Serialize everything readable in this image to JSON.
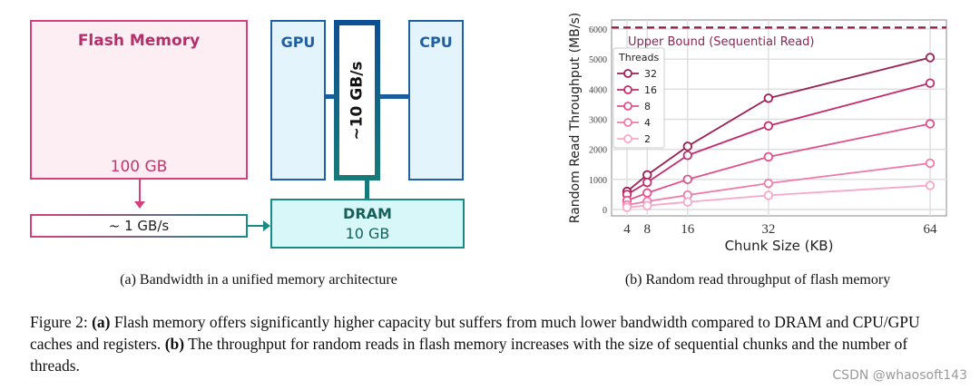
{
  "diagram": {
    "flash": {
      "title": "Flash Memory",
      "capacity": "100 GB",
      "fill": "#fdeef4",
      "stroke": "#d6407d"
    },
    "gpu": {
      "label": "GPU"
    },
    "cpu": {
      "label": "CPU"
    },
    "bus": {
      "label": "~10 GB/s"
    },
    "dram": {
      "title": "DRAM",
      "capacity": "10 GB"
    },
    "flash_link": {
      "label": "~ 1 GB/s"
    }
  },
  "subcaptions": {
    "a": "(a) Bandwidth in a unified memory architecture",
    "b": "(b) Random read throughput of flash memory"
  },
  "caption": {
    "prefix": "Figure 2: ",
    "a_tag": "(a)",
    "a_text": " Flash memory offers significantly higher capacity but suffers from much lower bandwidth compared to DRAM and CPU/GPU caches and registers. ",
    "b_tag": "(b)",
    "b_text": " The throughput for random reads in flash memory increases with the size of sequential chunks and the number of threads."
  },
  "watermark": "CSDN @whaosoft143",
  "chart_data": {
    "type": "line",
    "title": "",
    "xlabel": "Chunk Size (KB)",
    "ylabel": "Random Read Throughput (MB/s)",
    "x": [
      4,
      8,
      16,
      32,
      64
    ],
    "x_ticks": [
      "4",
      "8",
      "16",
      "32",
      "64"
    ],
    "y_ticks": [
      "0",
      "1000",
      "2000",
      "3000",
      "4000",
      "5000",
      "6000"
    ],
    "ylim": [
      -150,
      6200
    ],
    "xlim": [
      0.5,
      67.5
    ],
    "grid": true,
    "legend_title": "Threads",
    "legend_position": "upper left",
    "series": [
      {
        "name": "32",
        "color": "#9c1f55",
        "values": [
          600,
          1150,
          2100,
          3700,
          5050
        ]
      },
      {
        "name": "16",
        "color": "#c42a6d",
        "values": [
          500,
          900,
          1800,
          2780,
          4200
        ]
      },
      {
        "name": "8",
        "color": "#e0508d",
        "values": [
          300,
          550,
          1000,
          1750,
          2850
        ]
      },
      {
        "name": "4",
        "color": "#f07aaa",
        "values": [
          150,
          270,
          480,
          870,
          1540
        ]
      },
      {
        "name": "2",
        "color": "#f7a8c8",
        "values": [
          70,
          130,
          250,
          470,
          800
        ]
      }
    ],
    "annotations": [
      {
        "type": "hline",
        "y": 6050,
        "style": "dashed",
        "color": "#8b1a47",
        "label": "Upper Bound (Sequential Read)"
      }
    ]
  }
}
